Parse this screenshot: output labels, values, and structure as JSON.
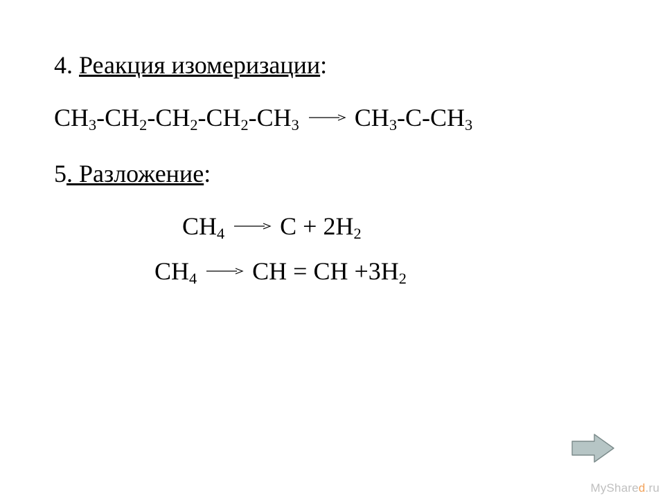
{
  "background_color": "#ffffff",
  "text_color": "#000000",
  "font_family": "Times New Roman",
  "heading_fontsize": 36,
  "formula_fontsize": 36,
  "arrow": {
    "color": "#000000",
    "stroke_width": 1.2,
    "length": 56,
    "head_length": 10,
    "head_width": 8
  },
  "section4": {
    "number": "4. ",
    "title": "Реакция изомеризации",
    "colon": ":",
    "equation": {
      "lhs_tokens": [
        {
          "t": "text",
          "v": "CH"
        },
        {
          "t": "sub",
          "v": "3"
        },
        {
          "t": "text",
          "v": "-CH"
        },
        {
          "t": "sub",
          "v": "2"
        },
        {
          "t": "text",
          "v": "-CH"
        },
        {
          "t": "sub",
          "v": "2"
        },
        {
          "t": "text",
          "v": "-CH"
        },
        {
          "t": "sub",
          "v": "2"
        },
        {
          "t": "text",
          "v": "-CH"
        },
        {
          "t": "sub",
          "v": "3"
        }
      ],
      "rhs_tokens": [
        {
          "t": "text",
          "v": "CH"
        },
        {
          "t": "sub",
          "v": "3"
        },
        {
          "t": "text",
          "v": "-C-CH"
        },
        {
          "t": "sub",
          "v": "3"
        }
      ]
    }
  },
  "section5": {
    "number": "5",
    "title": ". Разложение",
    "colon": ":",
    "equation_a": {
      "lhs_tokens": [
        {
          "t": "text",
          "v": "CH"
        },
        {
          "t": "sub",
          "v": "4"
        }
      ],
      "rhs_tokens": [
        {
          "t": "text",
          "v": "C + 2H"
        },
        {
          "t": "sub",
          "v": "2"
        }
      ]
    },
    "equation_b": {
      "lhs_tokens": [
        {
          "t": "text",
          "v": "CH"
        },
        {
          "t": "sub",
          "v": "4"
        }
      ],
      "rhs_tokens": [
        {
          "t": "text",
          "v": "CH = CH +3H"
        },
        {
          "t": "sub",
          "v": "2"
        }
      ]
    }
  },
  "nav_arrow": {
    "fill": "#b6c5c5",
    "stroke": "#7a8a8a",
    "stroke_width": 1.4
  },
  "watermark": {
    "prefix": "MyShare",
    "accent": "d",
    "suffix": ".ru",
    "prefix_color": "#bfbfbf",
    "accent_color": "#f2a25a",
    "suffix_color": "#bfbfbf",
    "fontsize": 17
  }
}
